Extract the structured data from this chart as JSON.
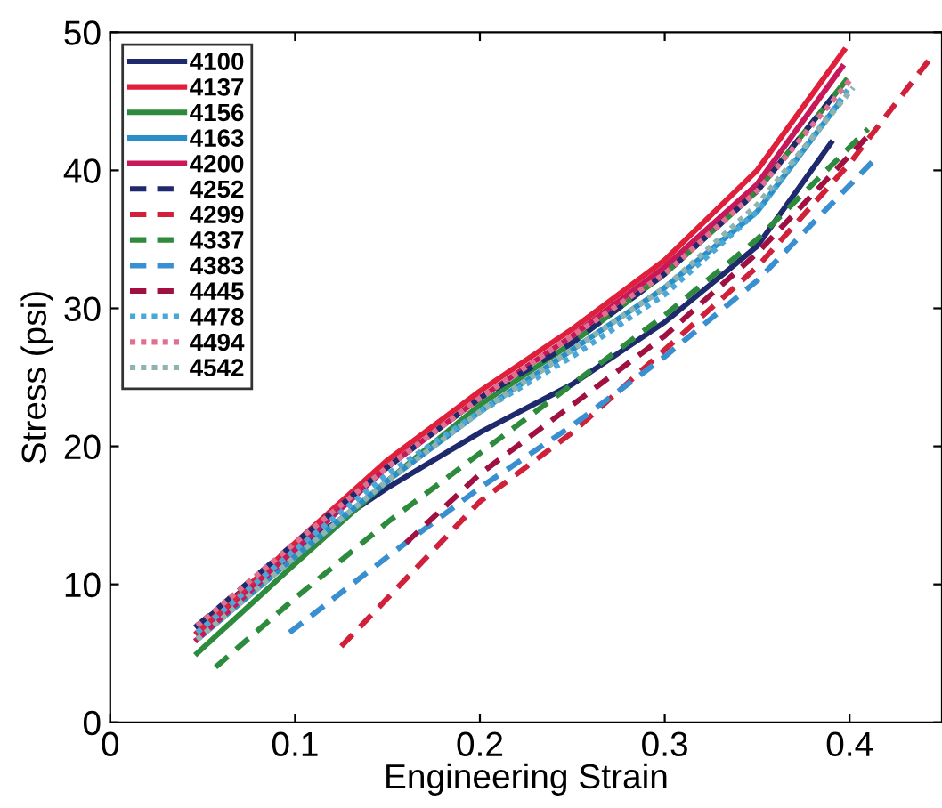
{
  "chart_data": {
    "type": "line",
    "xlabel": "Engineering Strain",
    "ylabel": "Stress (psi)",
    "xlim": [
      0,
      0.45
    ],
    "ylim": [
      0,
      50
    ],
    "xticks": [
      0,
      0.1,
      0.2,
      0.3,
      0.4
    ],
    "yticks": [
      0,
      10,
      20,
      30,
      40,
      50
    ],
    "grid": false,
    "legend": "top left",
    "marker": "none",
    "series": [
      {
        "name": "4100",
        "color": "#1f2a6e",
        "line_style": "solid",
        "x": [
          0.047,
          0.1,
          0.15,
          0.2,
          0.25,
          0.3,
          0.35,
          0.39
        ],
        "values": [
          7,
          12.5,
          17,
          21,
          24.5,
          29,
          34.5,
          42
        ]
      },
      {
        "name": "4137",
        "color": "#e0203a",
        "line_style": "solid",
        "x": [
          0.047,
          0.1,
          0.15,
          0.2,
          0.25,
          0.3,
          0.35,
          0.397
        ],
        "values": [
          6.5,
          13,
          19,
          24,
          28.5,
          33.5,
          40,
          48.7
        ]
      },
      {
        "name": "4156",
        "color": "#2e8b3e",
        "line_style": "solid",
        "x": [
          0.047,
          0.1,
          0.15,
          0.2,
          0.25,
          0.3,
          0.35,
          0.398
        ],
        "values": [
          5,
          11.5,
          17.5,
          23,
          27.5,
          32.5,
          38.5,
          46.5
        ]
      },
      {
        "name": "4163",
        "color": "#2a8fc8",
        "line_style": "solid",
        "x": [
          0.047,
          0.1,
          0.15,
          0.2,
          0.25,
          0.3,
          0.35,
          0.395
        ],
        "values": [
          6,
          12,
          17.5,
          22.5,
          27,
          31.5,
          37,
          45
        ]
      },
      {
        "name": "4200",
        "color": "#c8185a",
        "line_style": "solid",
        "x": [
          0.047,
          0.1,
          0.15,
          0.2,
          0.25,
          0.3,
          0.35,
          0.396
        ],
        "values": [
          6,
          12.5,
          18.5,
          23.5,
          28,
          33,
          39,
          47.5
        ]
      },
      {
        "name": "4252",
        "color": "#1f2a6e",
        "line_style": "dashed",
        "x": [
          0.047,
          0.1,
          0.15,
          0.2,
          0.25,
          0.3,
          0.35,
          0.392
        ],
        "values": [
          7,
          13,
          18.5,
          23.5,
          27.5,
          32.5,
          38.5,
          45.5
        ]
      },
      {
        "name": "4299",
        "color": "#d0203a",
        "line_style": "dashed",
        "x": [
          0.125,
          0.15,
          0.2,
          0.25,
          0.3,
          0.35,
          0.4,
          0.443
        ],
        "values": [
          5.5,
          9,
          16,
          21,
          27,
          33,
          40.5,
          48
        ]
      },
      {
        "name": "4337",
        "color": "#2e8b3e",
        "line_style": "dashed",
        "x": [
          0.057,
          0.1,
          0.15,
          0.2,
          0.25,
          0.3,
          0.35,
          0.41
        ],
        "values": [
          4,
          9,
          14.5,
          19.5,
          24.5,
          29.5,
          35,
          43
        ]
      },
      {
        "name": "4383",
        "color": "#3a8fd0",
        "line_style": "dashed",
        "x": [
          0.097,
          0.15,
          0.2,
          0.25,
          0.3,
          0.35,
          0.415
        ],
        "values": [
          6.5,
          12,
          17,
          21.5,
          26.5,
          32,
          41
        ]
      },
      {
        "name": "4445",
        "color": "#a01040",
        "line_style": "dashed",
        "x": [
          0.16,
          0.2,
          0.25,
          0.3,
          0.35,
          0.41
        ],
        "values": [
          13,
          18,
          23,
          28,
          34,
          42.5
        ]
      },
      {
        "name": "4478",
        "color": "#4aa8d8",
        "line_style": "dotted",
        "x": [
          0.047,
          0.1,
          0.15,
          0.2,
          0.25,
          0.3,
          0.35,
          0.4
        ],
        "values": [
          6.5,
          12.5,
          18,
          22.5,
          26.5,
          31,
          37,
          46
        ]
      },
      {
        "name": "4494",
        "color": "#e07090",
        "line_style": "dotted",
        "x": [
          0.047,
          0.1,
          0.15,
          0.2,
          0.25,
          0.3,
          0.35,
          0.4
        ],
        "values": [
          7,
          13,
          18.5,
          23.5,
          28,
          32.5,
          38.5,
          46.5
        ]
      },
      {
        "name": "4542",
        "color": "#8fb3b0",
        "line_style": "dotted",
        "x": [
          0.047,
          0.1,
          0.15,
          0.2,
          0.25,
          0.3,
          0.35,
          0.402
        ],
        "values": [
          6,
          12,
          17.5,
          22.5,
          27,
          31.5,
          37.5,
          46
        ]
      }
    ]
  }
}
